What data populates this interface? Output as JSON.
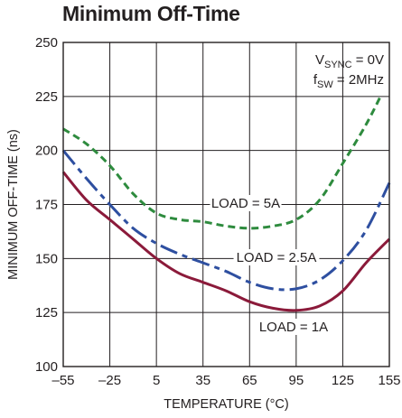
{
  "chart_data": {
    "type": "line",
    "title": "Minimum Off-Time",
    "xlabel": "TEMPERATURE (°C)",
    "ylabel": "MINIMUM OFF-TIME (ns)",
    "xlim": [
      -55,
      155
    ],
    "ylim": [
      100,
      250
    ],
    "xticks": [
      -55,
      -25,
      5,
      35,
      65,
      95,
      125,
      155
    ],
    "xtick_labels": [
      "–55",
      "–25",
      "5",
      "35",
      "65",
      "95",
      "125",
      "155"
    ],
    "yticks": [
      100,
      125,
      150,
      175,
      200,
      225,
      250
    ],
    "ytick_labels": [
      "100",
      "125",
      "150",
      "175",
      "200",
      "225",
      "250"
    ],
    "grid": true,
    "conditions": {
      "line1": {
        "main": "V",
        "sub": "SYNC",
        "rest": " = 0V"
      },
      "line2": {
        "main": "f",
        "sub": "SW",
        "rest": " = 2MHz"
      }
    },
    "series": [
      {
        "name": "LOAD = 5A",
        "color": "#2e8b3e",
        "style": "dashed",
        "x": [
          -55,
          -40,
          -25,
          -10,
          5,
          20,
          35,
          50,
          65,
          80,
          95,
          110,
          125,
          140,
          150
        ],
        "y": [
          210,
          203,
          193,
          180,
          171,
          168,
          167,
          165,
          164,
          165,
          168,
          177,
          194,
          212,
          226
        ]
      },
      {
        "name": "LOAD = 2.5A",
        "color": "#2e4fa0",
        "style": "dashdot",
        "x": [
          -55,
          -40,
          -25,
          -10,
          5,
          20,
          35,
          50,
          65,
          80,
          95,
          110,
          125,
          140,
          155
        ],
        "y": [
          200,
          187,
          175,
          164,
          157,
          152,
          148,
          144,
          139,
          136,
          136,
          140,
          149,
          163,
          185
        ]
      },
      {
        "name": "LOAD = 1A",
        "color": "#8b1a3a",
        "style": "solid",
        "x": [
          -55,
          -40,
          -25,
          -10,
          5,
          20,
          35,
          50,
          65,
          80,
          95,
          110,
          125,
          140,
          155
        ],
        "y": [
          190,
          177,
          168,
          159,
          150,
          143,
          139,
          135,
          130,
          127,
          126,
          128,
          135,
          148,
          159
        ]
      }
    ]
  }
}
